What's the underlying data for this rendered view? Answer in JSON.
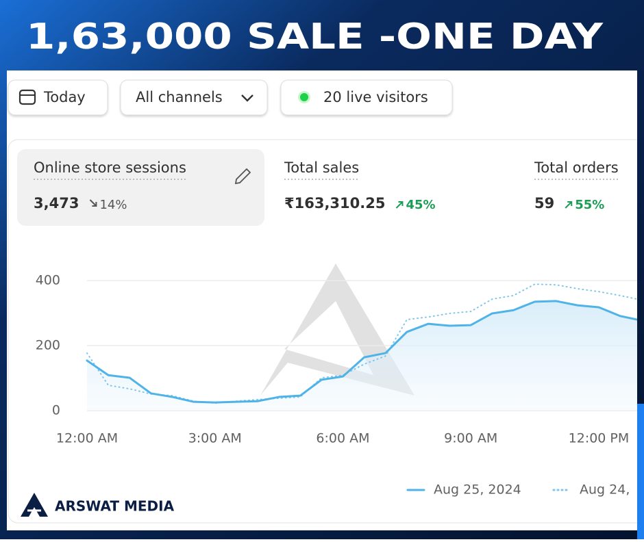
{
  "header": {
    "title": "1,63,000 SALE -ONE DAY"
  },
  "toolbar": {
    "date": "Today",
    "channels": "All channels",
    "visitors": "20 live visitors"
  },
  "metrics": [
    {
      "label": "Online store sessions",
      "value": "3,473",
      "change": "14%"
    },
    {
      "label": "Total sales",
      "value": "₹163,310.25",
      "change": "45%"
    },
    {
      "label": "Total orders",
      "value": "59",
      "change": "55%"
    }
  ],
  "chart_data": {
    "type": "line",
    "x": [
      0,
      0.5,
      1,
      1.5,
      2,
      2.5,
      3,
      3.5,
      4,
      4.5,
      5,
      5.5,
      6,
      6.5,
      7,
      7.5,
      8,
      8.5,
      9,
      9.5,
      10,
      10.5,
      11,
      11.5,
      12,
      12.5,
      12.9
    ],
    "series": [
      {
        "name": "Aug 25, 2024",
        "color": "#4fb3e8",
        "style": "solid",
        "values": [
          154,
          109,
          101,
          53,
          42,
          27,
          25,
          27,
          29,
          42,
          46,
          95,
          105,
          164,
          177,
          242,
          267,
          261,
          263,
          299,
          309,
          335,
          337,
          324,
          318,
          291,
          280
        ]
      },
      {
        "name": "Aug 24,",
        "color": "#7cc6ec",
        "style": "dotted",
        "values": [
          177,
          78,
          67,
          51,
          46,
          29,
          23,
          29,
          34,
          38,
          42,
          101,
          109,
          143,
          168,
          280,
          288,
          299,
          305,
          343,
          354,
          389,
          387,
          375,
          366,
          354,
          343
        ]
      }
    ],
    "xlim": [
      0,
      12.9
    ],
    "xticks": [
      {
        "value": 0,
        "label": "12:00 AM"
      },
      {
        "value": 3,
        "label": "3:00 AM"
      },
      {
        "value": 6,
        "label": "6:00 AM"
      },
      {
        "value": 9,
        "label": "9:00 AM"
      },
      {
        "value": 12,
        "label": "12:00 PM"
      }
    ],
    "ylim": [
      0,
      400
    ],
    "yticks": [
      0,
      200,
      400
    ],
    "grid": true
  },
  "brand": "ARSWAT MEDIA"
}
